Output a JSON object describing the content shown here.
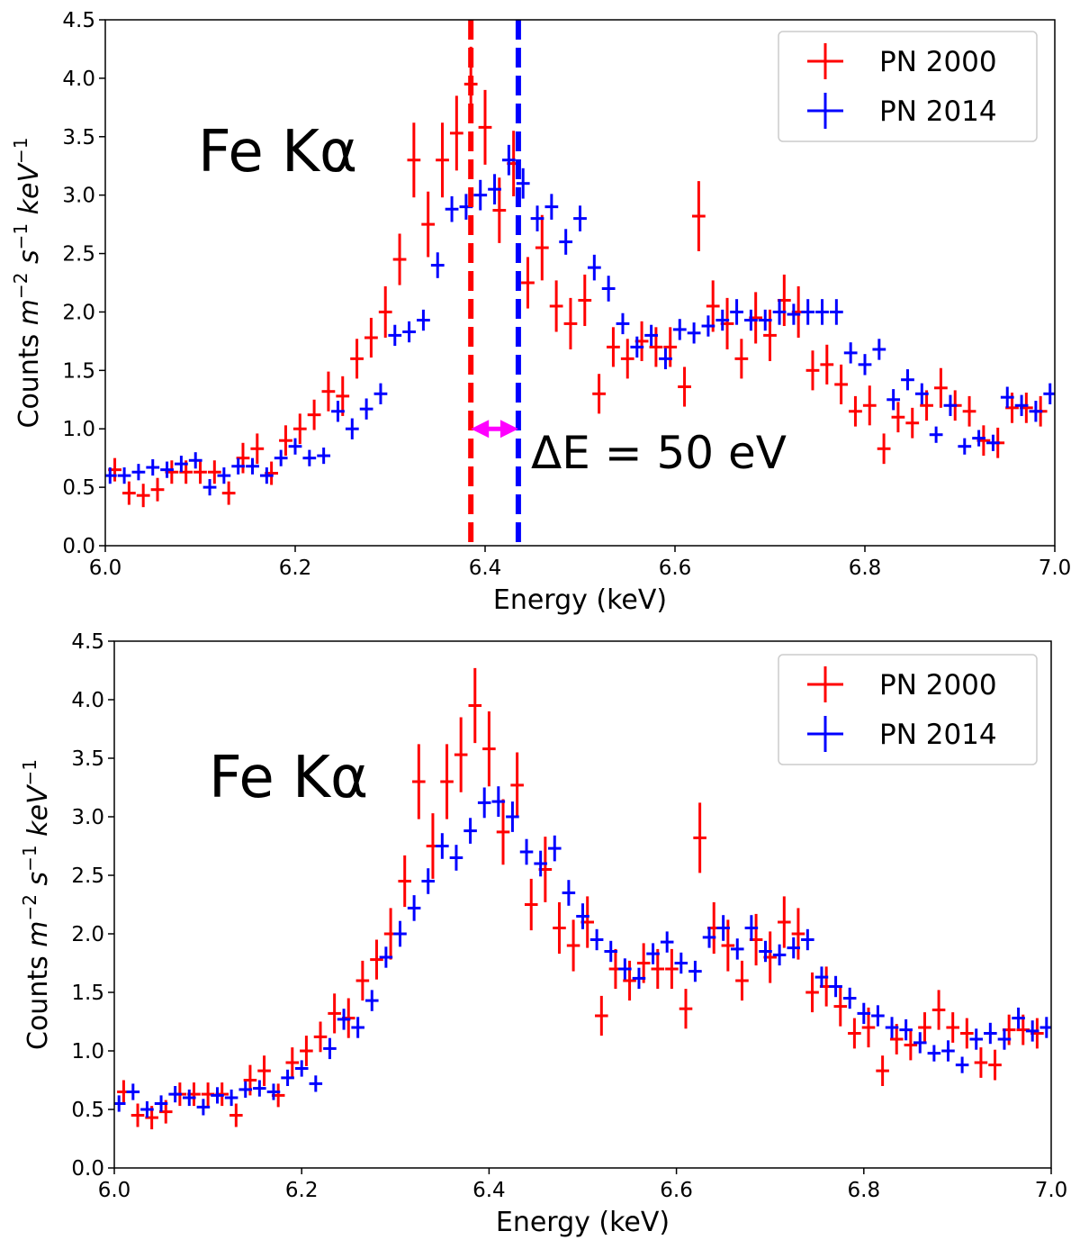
{
  "chart_data": [
    {
      "type": "errorbar",
      "xlabel": "Energy (keV)",
      "ylabel": [
        "Counts ",
        "m",
        "−2",
        " s",
        "−1",
        " keV",
        "−1"
      ],
      "xlim": [
        6.0,
        7.0
      ],
      "xticks": [
        {
          "value": 6.0,
          "label": "6.0"
        },
        6.2,
        6.4,
        6.6,
        6.8,
        {
          "value": 7.0,
          "label": "7.0"
        }
      ],
      "ylim": [
        0,
        4.5
      ],
      "yticks": [
        {
          "value": 0,
          "label": "0.0"
        },
        0.5,
        {
          "value": 1,
          "label": "1.0"
        },
        1.5,
        {
          "value": 2,
          "label": "2.0"
        },
        2.5,
        {
          "value": 3,
          "label": "3.0"
        },
        3.5,
        {
          "value": 4,
          "label": "4.0"
        },
        4.5
      ],
      "legend": "upper right",
      "annotations": [
        {
          "text": "Fe Kα",
          "color": "#000000"
        },
        {
          "text": "ΔE = 50 eV",
          "color": "#ff00ff"
        }
      ],
      "vlines": [
        {
          "x": 6.385,
          "color": "#ff0000"
        },
        {
          "x": 6.435,
          "color": "#0000ff"
        }
      ],
      "arrow": {
        "x": [
          6.385,
          6.435
        ],
        "y": 1.0,
        "color": "#ff00ff"
      },
      "series": [
        {
          "name": "PN 2000",
          "color": "#ff0000",
          "x_error": 0.007,
          "x": [
            6.01,
            6.025,
            6.04,
            6.055,
            6.07,
            6.085,
            6.1,
            6.115,
            6.13,
            6.145,
            6.16,
            6.175,
            6.19,
            6.205,
            6.22,
            6.235,
            6.25,
            6.265,
            6.28,
            6.295,
            6.31,
            6.325,
            6.34,
            6.355,
            6.37,
            6.385,
            6.4,
            6.415,
            6.43,
            6.445,
            6.46,
            6.475,
            6.49,
            6.505,
            6.52,
            6.535,
            6.55,
            6.565,
            6.58,
            6.595,
            6.61,
            6.625,
            6.64,
            6.655,
            6.67,
            6.685,
            6.7,
            6.715,
            6.73,
            6.745,
            6.76,
            6.775,
            6.79,
            6.805,
            6.82,
            6.835,
            6.85,
            6.865,
            6.88,
            6.895,
            6.91,
            6.925,
            6.94,
            6.955,
            6.97,
            6.985
          ],
          "values": [
            0.65,
            0.45,
            0.43,
            0.48,
            0.63,
            0.63,
            0.63,
            0.63,
            0.45,
            0.75,
            0.83,
            0.62,
            0.9,
            1.0,
            1.12,
            1.32,
            1.28,
            1.6,
            1.78,
            2.0,
            2.45,
            3.3,
            2.75,
            3.3,
            3.53,
            3.95,
            3.58,
            2.87,
            3.27,
            2.25,
            2.55,
            2.05,
            1.9,
            2.1,
            1.3,
            1.7,
            1.6,
            1.75,
            1.7,
            1.7,
            1.36,
            2.82,
            2.05,
            1.9,
            1.6,
            1.95,
            1.8,
            2.1,
            2.0,
            1.5,
            1.55,
            1.38,
            1.15,
            1.2,
            0.83,
            1.1,
            1.05,
            1.2,
            1.35,
            1.2,
            1.15,
            0.9,
            0.88,
            1.18,
            1.18,
            1.15
          ],
          "errors": [
            0.1,
            0.1,
            0.1,
            0.1,
            0.1,
            0.1,
            0.1,
            0.1,
            0.1,
            0.13,
            0.13,
            0.1,
            0.13,
            0.13,
            0.13,
            0.17,
            0.17,
            0.17,
            0.17,
            0.22,
            0.22,
            0.32,
            0.28,
            0.32,
            0.32,
            0.32,
            0.32,
            0.28,
            0.28,
            0.22,
            0.28,
            0.22,
            0.22,
            0.22,
            0.17,
            0.17,
            0.17,
            0.17,
            0.17,
            0.17,
            0.17,
            0.3,
            0.22,
            0.22,
            0.17,
            0.22,
            0.22,
            0.22,
            0.22,
            0.17,
            0.17,
            0.17,
            0.13,
            0.17,
            0.13,
            0.13,
            0.13,
            0.13,
            0.17,
            0.13,
            0.13,
            0.13,
            0.13,
            0.13,
            0.13,
            0.13
          ]
        },
        {
          "name": "PN 2014",
          "color": "#0000ff",
          "x_error": 0.007,
          "x": [
            6.005,
            6.02,
            6.035,
            6.05,
            6.065,
            6.08,
            6.095,
            6.11,
            6.125,
            6.14,
            6.155,
            6.17,
            6.185,
            6.2,
            6.215,
            6.23,
            6.245,
            6.26,
            6.275,
            6.29,
            6.305,
            6.32,
            6.335,
            6.35,
            6.365,
            6.38,
            6.395,
            6.41,
            6.425,
            6.44,
            6.455,
            6.47,
            6.485,
            6.5,
            6.515,
            6.53,
            6.545,
            6.56,
            6.575,
            6.59,
            6.605,
            6.62,
            6.635,
            6.65,
            6.665,
            6.68,
            6.695,
            6.71,
            6.725,
            6.74,
            6.755,
            6.77,
            6.785,
            6.8,
            6.815,
            6.83,
            6.845,
            6.86,
            6.875,
            6.89,
            6.905,
            6.92,
            6.935,
            6.95,
            6.965,
            6.98,
            6.995
          ],
          "values": [
            0.6,
            0.6,
            0.63,
            0.67,
            0.65,
            0.7,
            0.73,
            0.5,
            0.6,
            0.68,
            0.68,
            0.6,
            0.75,
            0.85,
            0.75,
            0.77,
            1.15,
            1.0,
            1.17,
            1.3,
            1.8,
            1.83,
            1.93,
            2.4,
            2.88,
            2.9,
            3.0,
            3.05,
            3.3,
            3.1,
            2.8,
            2.9,
            2.6,
            2.8,
            2.38,
            2.2,
            1.9,
            1.7,
            1.8,
            1.6,
            1.85,
            1.82,
            1.88,
            1.93,
            2.0,
            1.93,
            1.93,
            2.0,
            1.98,
            2.0,
            2.0,
            2.0,
            1.65,
            1.55,
            1.68,
            1.25,
            1.42,
            1.3,
            0.95,
            1.2,
            0.85,
            0.92,
            0.88,
            1.27,
            1.2,
            1.15,
            1.3
          ],
          "errors": [
            0.07,
            0.07,
            0.07,
            0.07,
            0.07,
            0.07,
            0.07,
            0.07,
            0.07,
            0.07,
            0.07,
            0.07,
            0.07,
            0.07,
            0.07,
            0.07,
            0.09,
            0.09,
            0.09,
            0.09,
            0.09,
            0.09,
            0.09,
            0.11,
            0.11,
            0.11,
            0.13,
            0.13,
            0.13,
            0.13,
            0.11,
            0.11,
            0.11,
            0.11,
            0.11,
            0.11,
            0.09,
            0.09,
            0.09,
            0.09,
            0.09,
            0.09,
            0.09,
            0.09,
            0.11,
            0.09,
            0.09,
            0.11,
            0.09,
            0.11,
            0.11,
            0.11,
            0.09,
            0.09,
            0.09,
            0.09,
            0.09,
            0.09,
            0.07,
            0.09,
            0.07,
            0.07,
            0.07,
            0.09,
            0.09,
            0.09,
            0.09
          ]
        }
      ]
    },
    {
      "type": "errorbar",
      "xlabel": "Energy (keV)",
      "ylabel": [
        "Counts ",
        "m",
        "−2",
        " s",
        "−1",
        " keV",
        "−1"
      ],
      "xlim": [
        6.0,
        7.0
      ],
      "xticks": [
        {
          "value": 6.0,
          "label": "6.0"
        },
        6.2,
        6.4,
        6.6,
        6.8,
        {
          "value": 7.0,
          "label": "7.0"
        }
      ],
      "ylim": [
        0,
        4.5
      ],
      "yticks": [
        {
          "value": 0,
          "label": "0.0"
        },
        0.5,
        {
          "value": 1,
          "label": "1.0"
        },
        1.5,
        {
          "value": 2,
          "label": "2.0"
        },
        2.5,
        {
          "value": 3,
          "label": "3.0"
        },
        3.5,
        {
          "value": 4,
          "label": "4.0"
        },
        4.5
      ],
      "legend": "upper right",
      "annotations": [
        {
          "text": "Fe Kα",
          "color": "#000000"
        }
      ],
      "series": [
        {
          "name": "PN 2000",
          "color": "#ff0000",
          "x_error": 0.007,
          "x": [
            6.01,
            6.025,
            6.04,
            6.055,
            6.07,
            6.085,
            6.1,
            6.115,
            6.13,
            6.145,
            6.16,
            6.175,
            6.19,
            6.205,
            6.22,
            6.235,
            6.25,
            6.265,
            6.28,
            6.295,
            6.31,
            6.325,
            6.34,
            6.355,
            6.37,
            6.385,
            6.4,
            6.415,
            6.43,
            6.445,
            6.46,
            6.475,
            6.49,
            6.505,
            6.52,
            6.535,
            6.55,
            6.565,
            6.58,
            6.595,
            6.61,
            6.625,
            6.64,
            6.655,
            6.67,
            6.685,
            6.7,
            6.715,
            6.73,
            6.745,
            6.76,
            6.775,
            6.79,
            6.805,
            6.82,
            6.835,
            6.85,
            6.865,
            6.88,
            6.895,
            6.91,
            6.925,
            6.94,
            6.955,
            6.97,
            6.985
          ],
          "values": [
            0.65,
            0.45,
            0.43,
            0.48,
            0.63,
            0.63,
            0.63,
            0.63,
            0.45,
            0.75,
            0.83,
            0.62,
            0.9,
            1.0,
            1.12,
            1.32,
            1.28,
            1.6,
            1.78,
            2.0,
            2.45,
            3.3,
            2.75,
            3.3,
            3.53,
            3.95,
            3.58,
            2.87,
            3.27,
            2.25,
            2.55,
            2.05,
            1.9,
            2.1,
            1.3,
            1.7,
            1.6,
            1.75,
            1.7,
            1.7,
            1.36,
            2.82,
            2.05,
            1.9,
            1.6,
            1.95,
            1.8,
            2.1,
            2.0,
            1.5,
            1.55,
            1.38,
            1.15,
            1.2,
            0.83,
            1.1,
            1.05,
            1.2,
            1.35,
            1.2,
            1.15,
            0.9,
            0.88,
            1.18,
            1.18,
            1.15
          ],
          "errors": [
            0.1,
            0.1,
            0.1,
            0.1,
            0.1,
            0.1,
            0.1,
            0.1,
            0.1,
            0.13,
            0.13,
            0.1,
            0.13,
            0.13,
            0.13,
            0.17,
            0.17,
            0.17,
            0.17,
            0.22,
            0.22,
            0.32,
            0.28,
            0.32,
            0.32,
            0.32,
            0.32,
            0.28,
            0.28,
            0.22,
            0.28,
            0.22,
            0.22,
            0.22,
            0.17,
            0.17,
            0.17,
            0.17,
            0.17,
            0.17,
            0.17,
            0.3,
            0.22,
            0.22,
            0.17,
            0.22,
            0.22,
            0.22,
            0.22,
            0.17,
            0.17,
            0.17,
            0.13,
            0.17,
            0.13,
            0.13,
            0.13,
            0.13,
            0.17,
            0.13,
            0.13,
            0.13,
            0.13,
            0.13,
            0.13,
            0.13
          ]
        },
        {
          "name": "PN 2014",
          "color": "#0000ff",
          "x_error": 0.007,
          "x": [
            6.005,
            6.02,
            6.035,
            6.05,
            6.065,
            6.08,
            6.095,
            6.11,
            6.125,
            6.14,
            6.155,
            6.17,
            6.185,
            6.2,
            6.215,
            6.23,
            6.245,
            6.26,
            6.275,
            6.29,
            6.305,
            6.32,
            6.335,
            6.35,
            6.365,
            6.38,
            6.395,
            6.41,
            6.425,
            6.44,
            6.455,
            6.47,
            6.485,
            6.5,
            6.515,
            6.53,
            6.545,
            6.56,
            6.575,
            6.59,
            6.605,
            6.62,
            6.635,
            6.65,
            6.665,
            6.68,
            6.695,
            6.71,
            6.725,
            6.74,
            6.755,
            6.77,
            6.785,
            6.8,
            6.815,
            6.83,
            6.845,
            6.86,
            6.875,
            6.89,
            6.905,
            6.92,
            6.935,
            6.95,
            6.965,
            6.98,
            6.995
          ],
          "values": [
            0.55,
            0.65,
            0.5,
            0.55,
            0.63,
            0.6,
            0.52,
            0.62,
            0.6,
            0.67,
            0.68,
            0.65,
            0.77,
            0.85,
            0.72,
            1.02,
            1.27,
            1.2,
            1.43,
            1.8,
            2.0,
            2.22,
            2.45,
            2.75,
            2.65,
            2.88,
            3.12,
            3.13,
            3.0,
            2.7,
            2.6,
            2.73,
            2.35,
            2.15,
            1.95,
            1.85,
            1.7,
            1.62,
            1.83,
            1.93,
            1.75,
            1.68,
            1.97,
            2.05,
            1.87,
            2.05,
            1.85,
            1.82,
            1.88,
            1.95,
            1.63,
            1.55,
            1.45,
            1.32,
            1.3,
            1.2,
            1.18,
            1.07,
            0.98,
            1.0,
            0.88,
            1.1,
            1.15,
            1.1,
            1.28,
            1.17,
            1.2
          ],
          "errors": [
            0.07,
            0.07,
            0.07,
            0.07,
            0.07,
            0.07,
            0.07,
            0.07,
            0.07,
            0.07,
            0.07,
            0.07,
            0.07,
            0.07,
            0.07,
            0.09,
            0.09,
            0.09,
            0.09,
            0.09,
            0.11,
            0.11,
            0.11,
            0.11,
            0.11,
            0.11,
            0.13,
            0.13,
            0.13,
            0.11,
            0.11,
            0.11,
            0.11,
            0.11,
            0.09,
            0.09,
            0.09,
            0.09,
            0.09,
            0.09,
            0.09,
            0.09,
            0.09,
            0.11,
            0.09,
            0.11,
            0.09,
            0.09,
            0.09,
            0.09,
            0.09,
            0.09,
            0.09,
            0.09,
            0.09,
            0.09,
            0.09,
            0.09,
            0.07,
            0.09,
            0.07,
            0.09,
            0.09,
            0.09,
            0.09,
            0.09,
            0.09
          ]
        }
      ]
    }
  ]
}
